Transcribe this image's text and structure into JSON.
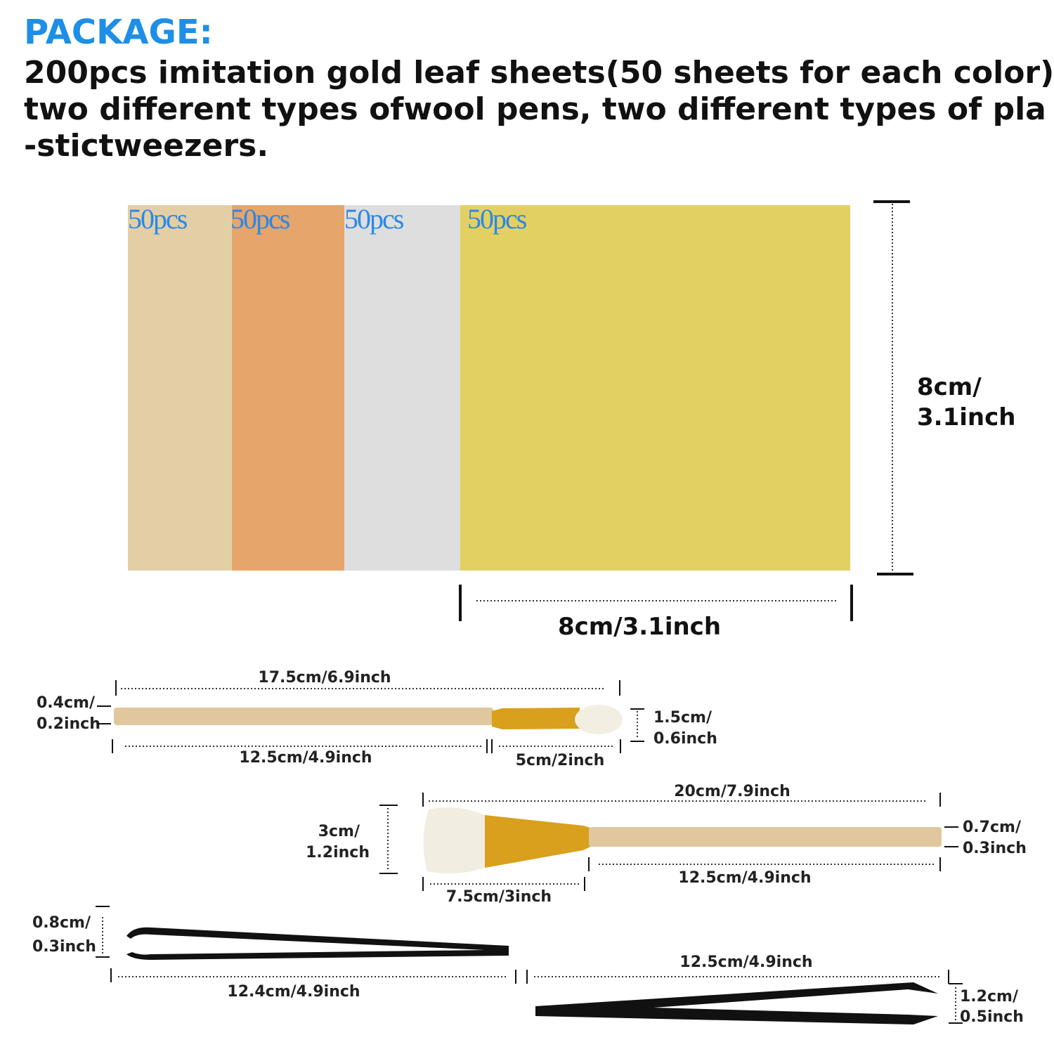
{
  "header": {
    "title": "PACKAGE:",
    "lines": [
      "200pcs imitation gold leaf sheets(50 sheets for each color)",
      "two different types ofwool pens, two different types of pla",
      "-stictweezers."
    ]
  },
  "sheets": {
    "labels": [
      "50pcs",
      "50pcs",
      "50pcs",
      "50pcs"
    ],
    "height": [
      "8cm/",
      "3.1inch"
    ],
    "width": "8cm/3.1inch"
  },
  "brush_small": {
    "length": "17.5cm/6.9inch",
    "handle_diameter": [
      "0.4cm/",
      "0.2inch"
    ],
    "head_width": [
      "1.5cm/",
      "0.6inch"
    ],
    "handle_length": "12.5cm/4.9inch",
    "head_length": "5cm/2inch"
  },
  "brush_large": {
    "length": "20cm/7.9inch",
    "head_width": [
      "3cm/",
      "1.2inch"
    ],
    "handle_diameter": [
      "0.7cm/",
      "0.3inch"
    ],
    "handle_length": "12.5cm/4.9inch",
    "head_length": "7.5cm/3inch"
  },
  "tweezer_curved": {
    "opening": [
      "0.8cm/",
      "0.3inch"
    ],
    "length": "12.4cm/4.9inch"
  },
  "tweezer_straight": {
    "length": "12.5cm/4.9inch",
    "opening": [
      "1.2cm/",
      "0.5inch"
    ]
  }
}
